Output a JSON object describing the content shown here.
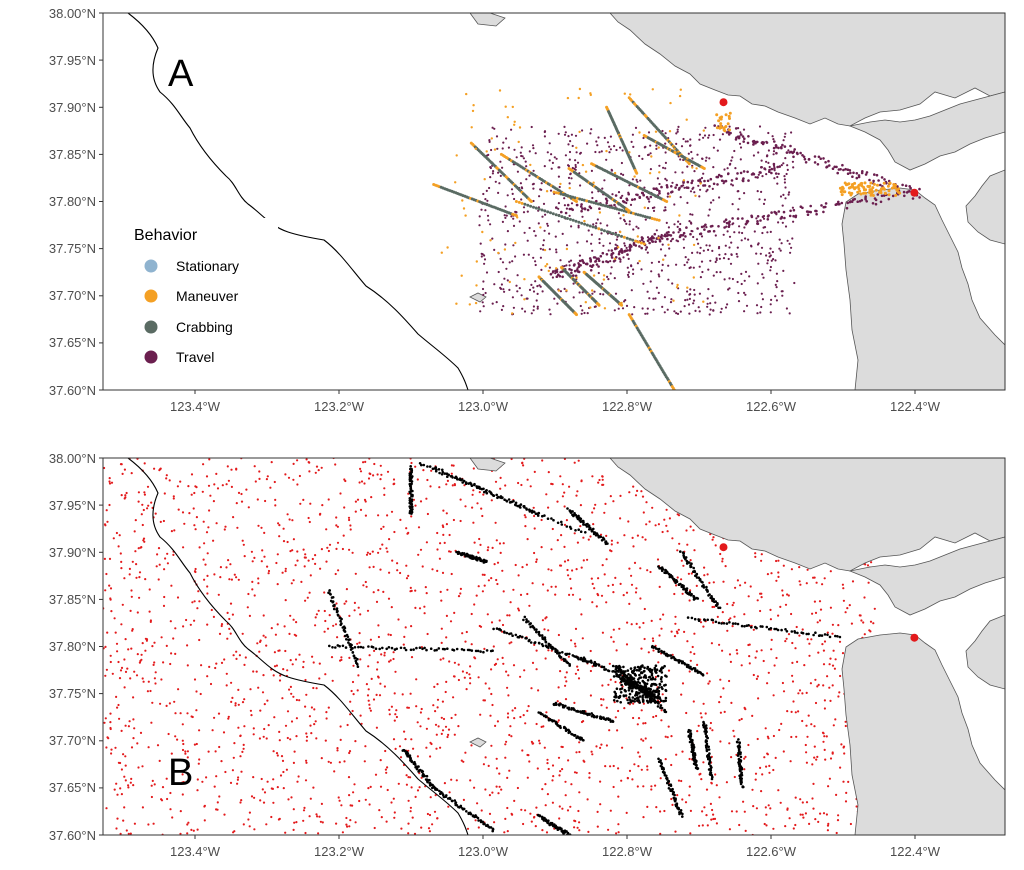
{
  "colors": {
    "Stationary": "#8fb3cf",
    "Maneuver": "#f4a024",
    "Crabbing": "#5a6b63",
    "Travel": "#6b1f4f",
    "background_points": "#e31a1c",
    "presence_points": "#000000",
    "ports": "#e31a1c",
    "land": "#dcdcdc"
  },
  "chart_data": [
    {
      "type": "scatter",
      "panel": "A",
      "xlim": [
        -123.5,
        -122.3
      ],
      "ylim": [
        37.6,
        38.0
      ],
      "x_ticks": [
        -123.4,
        -123.2,
        -123.0,
        -122.8,
        -122.6,
        -122.4
      ],
      "x_tick_labels": [
        "123.4°W",
        "123.2°W",
        "123.0°W",
        "122.8°W",
        "122.6°W",
        "122.4°W"
      ],
      "y_ticks": [
        37.6,
        37.65,
        37.7,
        37.75,
        37.8,
        37.85,
        37.9,
        37.95,
        38.0
      ],
      "y_tick_labels": [
        "37.60°N",
        "37.65°N",
        "37.70°N",
        "37.75°N",
        "37.80°N",
        "37.85°N",
        "37.90°N",
        "37.95°N",
        "38.00°N"
      ],
      "legend": {
        "title": "Behavior",
        "position": "left",
        "entries": [
          "Stationary",
          "Maneuver",
          "Crabbing",
          "Travel"
        ]
      },
      "ports": [
        {
          "lon": -122.677,
          "lat": 37.906
        },
        {
          "lon": -122.42,
          "lat": 37.809
        }
      ],
      "travel_routes": [
        {
          "from": [
            -122.42,
            37.809
          ],
          "to": [
            -122.678,
            37.877
          ]
        },
        {
          "from": [
            -122.42,
            37.809
          ],
          "to": [
            -122.75,
            37.765
          ]
        },
        {
          "from": [
            -122.6,
            37.835
          ],
          "to": [
            -122.89,
            37.79
          ]
        },
        {
          "from": [
            -122.75,
            37.765
          ],
          "to": [
            -122.9,
            37.72
          ]
        }
      ],
      "crabbing_segments": [
        {
          "from": [
            -123.06,
            37.818
          ],
          "to": [
            -122.95,
            37.785
          ]
        },
        {
          "from": [
            -123.01,
            37.862
          ],
          "to": [
            -122.93,
            37.8
          ]
        },
        {
          "from": [
            -122.97,
            37.85
          ],
          "to": [
            -122.87,
            37.8
          ]
        },
        {
          "from": [
            -122.95,
            37.8
          ],
          "to": [
            -122.78,
            37.755
          ]
        },
        {
          "from": [
            -122.9,
            37.81
          ],
          "to": [
            -122.76,
            37.78
          ]
        },
        {
          "from": [
            -122.85,
            37.84
          ],
          "to": [
            -122.75,
            37.8
          ]
        },
        {
          "from": [
            -122.8,
            37.91
          ],
          "to": [
            -122.72,
            37.84
          ]
        },
        {
          "from": [
            -122.78,
            37.87
          ],
          "to": [
            -122.7,
            37.835
          ]
        },
        {
          "from": [
            -122.83,
            37.9
          ],
          "to": [
            -122.79,
            37.83
          ]
        },
        {
          "from": [
            -122.92,
            37.72
          ],
          "to": [
            -122.87,
            37.68
          ]
        },
        {
          "from": [
            -122.89,
            37.73
          ],
          "to": [
            -122.84,
            37.69
          ]
        },
        {
          "from": [
            -122.86,
            37.725
          ],
          "to": [
            -122.81,
            37.69
          ]
        },
        {
          "from": [
            -122.8,
            37.68
          ],
          "to": [
            -122.74,
            37.6
          ]
        },
        {
          "from": [
            -122.88,
            37.835
          ],
          "to": [
            -122.8,
            37.79
          ]
        }
      ]
    },
    {
      "type": "scatter",
      "panel": "B",
      "xlim": [
        -123.5,
        -122.3
      ],
      "ylim": [
        37.6,
        38.0
      ],
      "x_ticks": [
        -123.4,
        -123.2,
        -123.0,
        -122.8,
        -122.6,
        -122.4
      ],
      "x_tick_labels": [
        "123.4°W",
        "123.2°W",
        "123.0°W",
        "122.8°W",
        "122.6°W",
        "122.4°W"
      ],
      "y_ticks": [
        37.6,
        37.65,
        37.7,
        37.75,
        37.8,
        37.85,
        37.9,
        37.95,
        38.0
      ],
      "y_tick_labels": [
        "37.60°N",
        "37.65°N",
        "37.70°N",
        "37.75°N",
        "37.80°N",
        "37.85°N",
        "37.90°N",
        "37.95°N",
        "38.00°N"
      ],
      "ports": [
        {
          "lon": -122.677,
          "lat": 37.906
        },
        {
          "lon": -122.42,
          "lat": 37.809
        }
      ],
      "presence_tracks": [
        {
          "from": [
            -123.08,
            37.995
          ],
          "to": [
            -122.86,
            37.92
          ]
        },
        {
          "from": [
            -123.06,
            37.99
          ],
          "to": [
            -122.92,
            37.94
          ]
        },
        {
          "from": [
            -122.88,
            37.945
          ],
          "to": [
            -122.83,
            37.91
          ]
        },
        {
          "from": [
            -123.03,
            37.9
          ],
          "to": [
            -122.99,
            37.89
          ]
        },
        {
          "from": [
            -122.76,
            37.885
          ],
          "to": [
            -122.71,
            37.85
          ]
        },
        {
          "from": [
            -122.73,
            37.9
          ],
          "to": [
            -122.68,
            37.84
          ]
        },
        {
          "from": [
            -122.94,
            37.83
          ],
          "to": [
            -122.88,
            37.78
          ]
        },
        {
          "from": [
            -122.98,
            37.82
          ],
          "to": [
            -122.84,
            37.78
          ]
        },
        {
          "from": [
            -122.87,
            37.79
          ],
          "to": [
            -122.76,
            37.75
          ]
        },
        {
          "from": [
            -122.82,
            37.78
          ],
          "to": [
            -122.75,
            37.73
          ]
        },
        {
          "from": [
            -122.81,
            37.765
          ],
          "to": [
            -122.76,
            37.745
          ]
        },
        {
          "from": [
            -122.77,
            37.8
          ],
          "to": [
            -122.7,
            37.77
          ]
        },
        {
          "from": [
            -122.92,
            37.73
          ],
          "to": [
            -122.86,
            37.7
          ]
        },
        {
          "from": [
            -122.9,
            37.74
          ],
          "to": [
            -122.82,
            37.72
          ]
        },
        {
          "from": [
            -122.7,
            37.72
          ],
          "to": [
            -122.69,
            37.66
          ]
        },
        {
          "from": [
            -122.72,
            37.71
          ],
          "to": [
            -122.71,
            37.67
          ]
        },
        {
          "from": [
            -122.655,
            37.7
          ],
          "to": [
            -122.65,
            37.65
          ]
        },
        {
          "from": [
            -123.2,
            37.8
          ],
          "to": [
            -122.98,
            37.795
          ]
        },
        {
          "from": [
            -122.72,
            37.83
          ],
          "to": [
            -122.52,
            37.81
          ]
        },
        {
          "from": [
            -123.1,
            37.69
          ],
          "to": [
            -123.06,
            37.65
          ]
        },
        {
          "from": [
            -123.06,
            37.65
          ],
          "to": [
            -122.98,
            37.605
          ]
        },
        {
          "from": [
            -122.92,
            37.62
          ],
          "to": [
            -122.88,
            37.6
          ]
        },
        {
          "from": [
            -122.76,
            37.68
          ],
          "to": [
            -122.73,
            37.62
          ]
        },
        {
          "from": [
            -123.09,
            37.99
          ],
          "to": [
            -123.09,
            37.94
          ]
        },
        {
          "from": [
            -123.2,
            37.86
          ],
          "to": [
            -123.16,
            37.78
          ]
        }
      ]
    }
  ],
  "panel_labels": {
    "a": "A",
    "b": "B"
  },
  "legend_title": "Behavior",
  "legend_labels": {
    "stationary": "Stationary",
    "maneuver": "Maneuver",
    "crabbing": "Crabbing",
    "travel": "Travel"
  },
  "axis_labels": {
    "a_x": [
      "123.4°W",
      "123.2°W",
      "123.0°W",
      "122.8°W",
      "122.6°W",
      "122.4°W"
    ],
    "a_y": [
      "37.60°N",
      "37.65°N",
      "37.70°N",
      "37.75°N",
      "37.80°N",
      "37.85°N",
      "37.90°N",
      "37.95°N",
      "38.00°N"
    ],
    "b_x": [
      "123.4°W",
      "123.2°W",
      "123.0°W",
      "122.8°W",
      "122.6°W",
      "122.4°W"
    ],
    "b_y": [
      "37.60°N",
      "37.65°N",
      "37.70°N",
      "37.75°N",
      "37.80°N",
      "37.85°N",
      "37.90°N",
      "37.95°N",
      "38.00°N"
    ]
  }
}
